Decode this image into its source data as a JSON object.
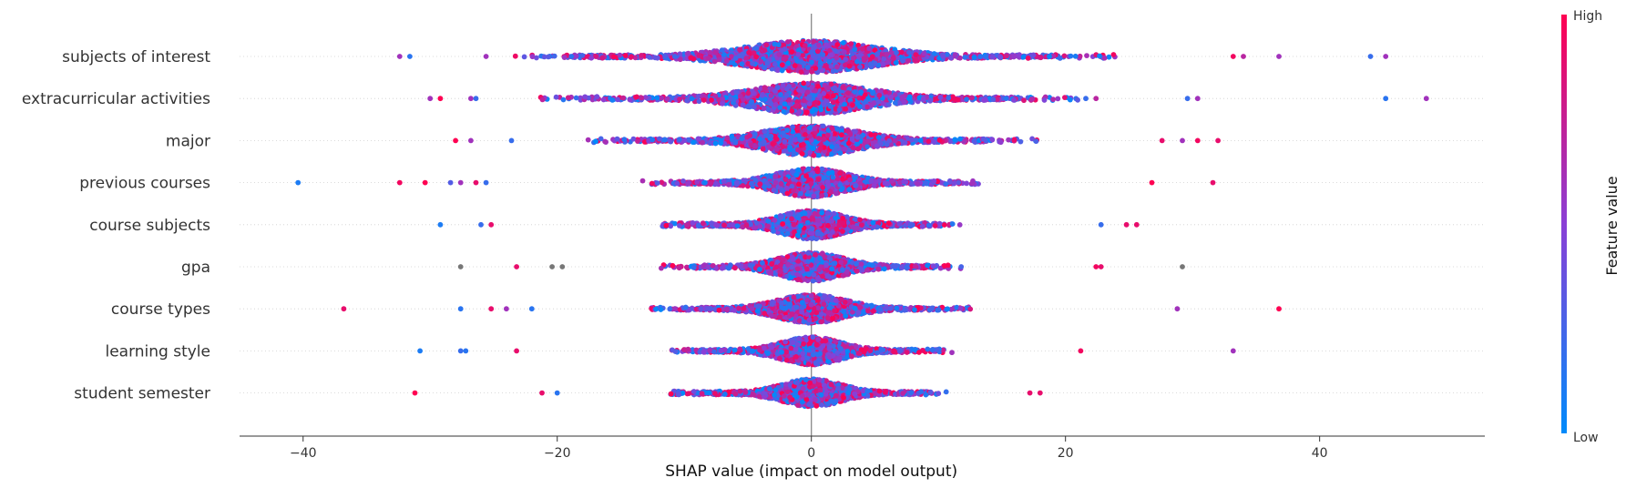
{
  "chart_data": {
    "type": "scatter",
    "subtype": "shap-beeswarm",
    "title": "",
    "xlabel": "SHAP value (impact on model output)",
    "ylabel": "",
    "xlim": [
      -45,
      53
    ],
    "xticks": [
      -40,
      -20,
      0,
      20,
      40
    ],
    "tick_labels": [
      "−40",
      "−20",
      "0",
      "20",
      "40"
    ],
    "colorbar": {
      "title": "Feature value",
      "high_label": "High",
      "low_label": "Low",
      "high_color": "#ff0052",
      "low_color": "#008bfb",
      "missing_color": "#777777"
    },
    "features": [
      {
        "name": "subjects of interest",
        "spread": 6.5,
        "density": 1.0,
        "outliers": [
          {
            "x": -32.4,
            "v": 0.6
          },
          {
            "x": -31.6,
            "v": 0.15
          },
          {
            "x": -25.6,
            "v": 0.6
          },
          {
            "x": 33.2,
            "v": 0.95
          },
          {
            "x": 34.0,
            "v": 0.7
          },
          {
            "x": 36.8,
            "v": 0.6
          },
          {
            "x": 44.0,
            "v": 0.2
          },
          {
            "x": 45.2,
            "v": 0.6
          }
        ]
      },
      {
        "name": "extracurricular activities",
        "spread": 5.8,
        "density": 0.95,
        "outliers": [
          {
            "x": -30.0,
            "v": 0.6
          },
          {
            "x": -29.2,
            "v": 1.0
          },
          {
            "x": -26.8,
            "v": 0.6
          },
          {
            "x": -26.4,
            "v": 0.2
          },
          {
            "x": 21.6,
            "v": 0.2
          },
          {
            "x": 22.4,
            "v": 0.7
          },
          {
            "x": 29.6,
            "v": 0.2
          },
          {
            "x": 30.4,
            "v": 0.6
          },
          {
            "x": 45.2,
            "v": 0.15
          },
          {
            "x": 48.4,
            "v": 0.6
          }
        ]
      },
      {
        "name": "major",
        "spread": 4.8,
        "density": 0.85,
        "outliers": [
          {
            "x": -28.0,
            "v": 1.0
          },
          {
            "x": -26.8,
            "v": 0.6
          },
          {
            "x": -23.6,
            "v": 0.2
          },
          {
            "x": 27.6,
            "v": 0.9
          },
          {
            "x": 29.2,
            "v": 0.6
          },
          {
            "x": 30.4,
            "v": 0.95
          },
          {
            "x": 32.0,
            "v": 0.9
          }
        ]
      },
      {
        "name": "previous courses",
        "spread": 3.6,
        "density": 0.75,
        "outliers": [
          {
            "x": -40.4,
            "v": 0.1
          },
          {
            "x": -32.4,
            "v": 0.95
          },
          {
            "x": -30.4,
            "v": 1.0
          },
          {
            "x": -28.4,
            "v": 0.3
          },
          {
            "x": -27.6,
            "v": 0.6
          },
          {
            "x": -26.4,
            "v": 0.9
          },
          {
            "x": -25.6,
            "v": 0.2
          },
          {
            "x": 26.8,
            "v": 1.0
          },
          {
            "x": 31.6,
            "v": 0.9
          }
        ]
      },
      {
        "name": "course subjects",
        "spread": 3.2,
        "density": 0.75,
        "outliers": [
          {
            "x": -29.2,
            "v": 0.1
          },
          {
            "x": -26.0,
            "v": 0.2
          },
          {
            "x": -25.2,
            "v": 0.9
          },
          {
            "x": 22.8,
            "v": 0.2
          },
          {
            "x": 24.8,
            "v": 0.9
          },
          {
            "x": 25.6,
            "v": 0.9
          }
        ]
      },
      {
        "name": "gpa",
        "spread": 3.2,
        "density": 0.75,
        "outliers": [
          {
            "x": -27.6,
            "v": -1
          },
          {
            "x": -23.2,
            "v": 0.9
          },
          {
            "x": -20.4,
            "v": -1
          },
          {
            "x": -19.6,
            "v": -1
          },
          {
            "x": 22.4,
            "v": 0.95
          },
          {
            "x": 22.8,
            "v": 0.9
          },
          {
            "x": 29.2,
            "v": -1
          }
        ]
      },
      {
        "name": "course types",
        "spread": 3.4,
        "density": 0.75,
        "outliers": [
          {
            "x": -36.8,
            "v": 0.9
          },
          {
            "x": -27.6,
            "v": 0.15
          },
          {
            "x": -25.2,
            "v": 0.9
          },
          {
            "x": -24.0,
            "v": 0.6
          },
          {
            "x": -22.0,
            "v": 0.15
          },
          {
            "x": 28.8,
            "v": 0.6
          },
          {
            "x": 36.8,
            "v": 1.0
          }
        ]
      },
      {
        "name": "learning style",
        "spread": 3.0,
        "density": 0.7,
        "outliers": [
          {
            "x": -30.8,
            "v": 0.1
          },
          {
            "x": -27.6,
            "v": 0.2
          },
          {
            "x": -27.2,
            "v": 0.15
          },
          {
            "x": -23.2,
            "v": 0.9
          },
          {
            "x": 21.2,
            "v": 0.95
          },
          {
            "x": 33.2,
            "v": 0.6
          }
        ]
      },
      {
        "name": "student semester",
        "spread": 3.0,
        "density": 0.7,
        "outliers": [
          {
            "x": -31.2,
            "v": 1.0
          },
          {
            "x": -21.2,
            "v": 0.9
          },
          {
            "x": -20.0,
            "v": 0.15
          },
          {
            "x": 17.2,
            "v": 0.9
          },
          {
            "x": 18.0,
            "v": 0.9
          }
        ]
      }
    ]
  }
}
